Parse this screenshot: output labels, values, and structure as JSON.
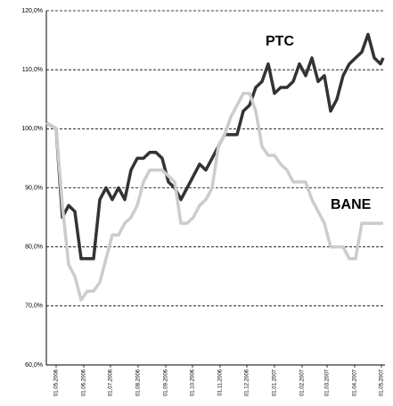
{
  "chart_data": {
    "type": "line",
    "annotations": [
      "PTC",
      "BANE"
    ],
    "x": [
      "20.04.2006",
      "01.05.2006",
      "08.05.2006",
      "15.05.2006",
      "22.05.2006",
      "29.05.2006",
      "05.06.2006",
      "12.06.2006",
      "19.06.2006",
      "26.06.2006",
      "03.07.2006",
      "10.07.2006",
      "17.07.2006",
      "24.07.2006",
      "31.07.2006",
      "07.08.2006",
      "14.08.2006",
      "21.08.2006",
      "28.08.2006",
      "04.09.2006",
      "11.09.2006",
      "18.09.2006",
      "25.09.2006",
      "02.10.2006",
      "09.10.2006",
      "16.10.2006",
      "23.10.2006",
      "30.10.2006",
      "06.11.2006",
      "13.11.2006",
      "20.11.2006",
      "27.11.2006",
      "04.12.2006",
      "11.12.2006",
      "18.12.2006",
      "25.12.2006",
      "01.01.2007",
      "08.01.2007",
      "15.01.2007",
      "22.01.2007",
      "29.01.2007",
      "05.02.2007",
      "12.02.2007",
      "19.02.2007",
      "26.02.2007",
      "05.03.2007",
      "12.03.2007",
      "19.03.2007",
      "26.03.2007",
      "02.04.2007",
      "09.04.2007",
      "16.04.2007",
      "23.04.2007",
      "30.04.2007",
      "03.05.2007"
    ],
    "series": [
      {
        "name": "PTC",
        "color": "#333333",
        "values": [
          101,
          100,
          85,
          87,
          86,
          78,
          78,
          78,
          88,
          90,
          88,
          90,
          88,
          93,
          95,
          95,
          96,
          96,
          95,
          91,
          90,
          88,
          90,
          92,
          94,
          93,
          95,
          97,
          99,
          99,
          99,
          103,
          104,
          107,
          108,
          111,
          106,
          107,
          107,
          108,
          111,
          109,
          112,
          108,
          109,
          103,
          105,
          109,
          111,
          112,
          113,
          116,
          112,
          111,
          112
        ]
      },
      {
        "name": "BANE",
        "color": "#cccccc",
        "values": [
          101,
          100,
          87,
          77,
          75,
          71,
          72.5,
          72.5,
          74,
          78,
          82,
          82,
          84,
          85,
          87,
          91,
          93,
          93,
          93,
          92,
          91,
          84,
          84,
          85,
          87,
          88,
          90,
          97,
          99,
          102,
          104,
          106,
          106,
          103,
          97,
          95.5,
          95.5,
          94,
          93,
          91,
          91,
          91,
          88,
          86,
          84,
          80,
          80,
          80,
          78,
          78,
          84,
          84,
          84,
          84,
          84
        ]
      }
    ],
    "xlim": [
      "20.04.2006",
      "03.05.2007"
    ],
    "xticks": [
      "01.05.2006",
      "01.06.2006",
      "01.07.2006",
      "01.08.2006",
      "01.09.2006",
      "01.10.2006",
      "01.11.2006",
      "01.12.2006",
      "01.01.2007",
      "01.02.2007",
      "01.03.2007",
      "01.04.2007",
      "01.05.2007"
    ],
    "ylim": [
      60,
      120
    ],
    "yticks": [
      {
        "value": 60,
        "label": "60,0%"
      },
      {
        "value": 70,
        "label": "70,0%"
      },
      {
        "value": 80,
        "label": "80,0%"
      },
      {
        "value": 90,
        "label": "90,0%"
      },
      {
        "value": 100,
        "label": "100,0%"
      },
      {
        "value": 110,
        "label": "110,0%"
      },
      {
        "value": 120,
        "label": "120,0%"
      }
    ],
    "grid": true
  }
}
